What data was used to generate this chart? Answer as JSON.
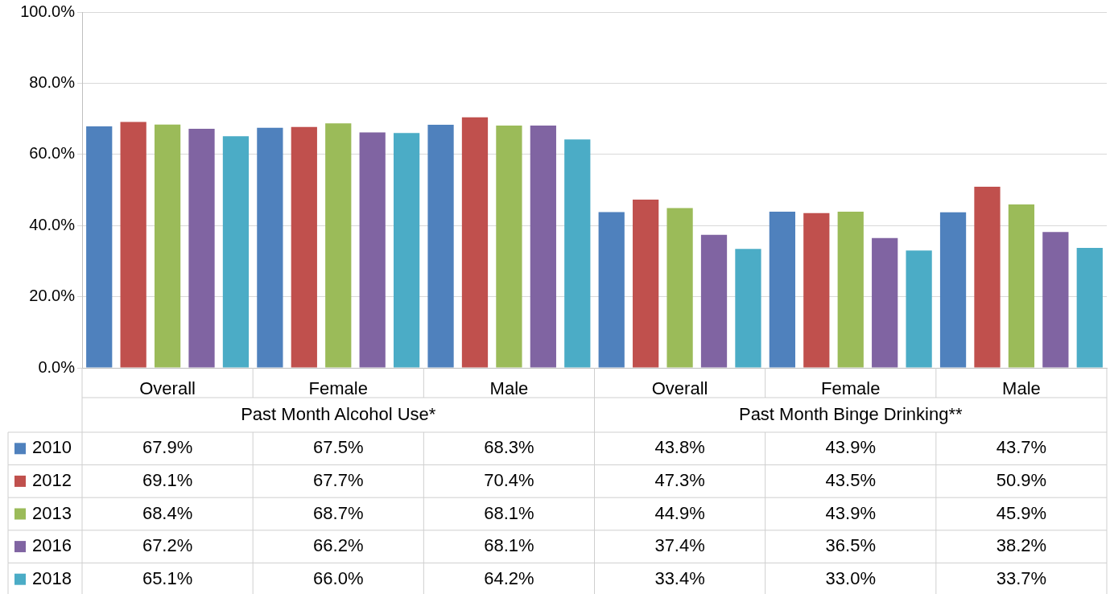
{
  "chart_data": {
    "type": "bar",
    "categories": [
      "Overall",
      "Female",
      "Male",
      "Overall",
      "Female",
      "Male"
    ],
    "series": [
      {
        "name": "2010",
        "color": "#4f81bd",
        "values": [
          67.9,
          67.5,
          68.3,
          43.8,
          43.9,
          43.7
        ],
        "value_labels": [
          "67.9%",
          "67.5%",
          "68.3%",
          "43.8%",
          "43.9%",
          "43.7%"
        ]
      },
      {
        "name": "2012",
        "color": "#c0504d",
        "values": [
          69.1,
          67.7,
          70.4,
          47.3,
          43.5,
          50.9
        ],
        "value_labels": [
          "69.1%",
          "67.7%",
          "70.4%",
          "47.3%",
          "43.5%",
          "50.9%"
        ]
      },
      {
        "name": "2013",
        "color": "#9bbb59",
        "values": [
          68.4,
          68.7,
          68.1,
          44.9,
          43.9,
          45.9
        ],
        "value_labels": [
          "68.4%",
          "68.7%",
          "68.1%",
          "44.9%",
          "43.9%",
          "45.9%"
        ]
      },
      {
        "name": "2016",
        "color": "#8064a2",
        "values": [
          67.2,
          66.2,
          68.1,
          37.4,
          36.5,
          38.2
        ],
        "value_labels": [
          "67.2%",
          "66.2%",
          "68.1%",
          "37.4%",
          "36.5%",
          "38.2%"
        ]
      },
      {
        "name": "2018",
        "color": "#4bacc6",
        "values": [
          65.1,
          66.0,
          64.2,
          33.4,
          33.0,
          33.7
        ],
        "value_labels": [
          "65.1%",
          "66.0%",
          "64.2%",
          "33.4%",
          "33.0%",
          "33.7%"
        ]
      }
    ],
    "annotations": [
      "Past Month Alcohol Use*",
      "Past Month Binge Drinking**"
    ],
    "ylim": [
      0,
      100
    ],
    "yticks": [
      {
        "value": 0,
        "label": "0.0%"
      },
      {
        "value": 20,
        "label": "20.0%"
      },
      {
        "value": 40,
        "label": "40.0%"
      },
      {
        "value": 60,
        "label": "60.0%"
      },
      {
        "value": 80,
        "label": "80.0%"
      },
      {
        "value": 100,
        "label": "100.0%"
      }
    ],
    "grid": "y",
    "legend": "bottom",
    "data_labels": true
  }
}
